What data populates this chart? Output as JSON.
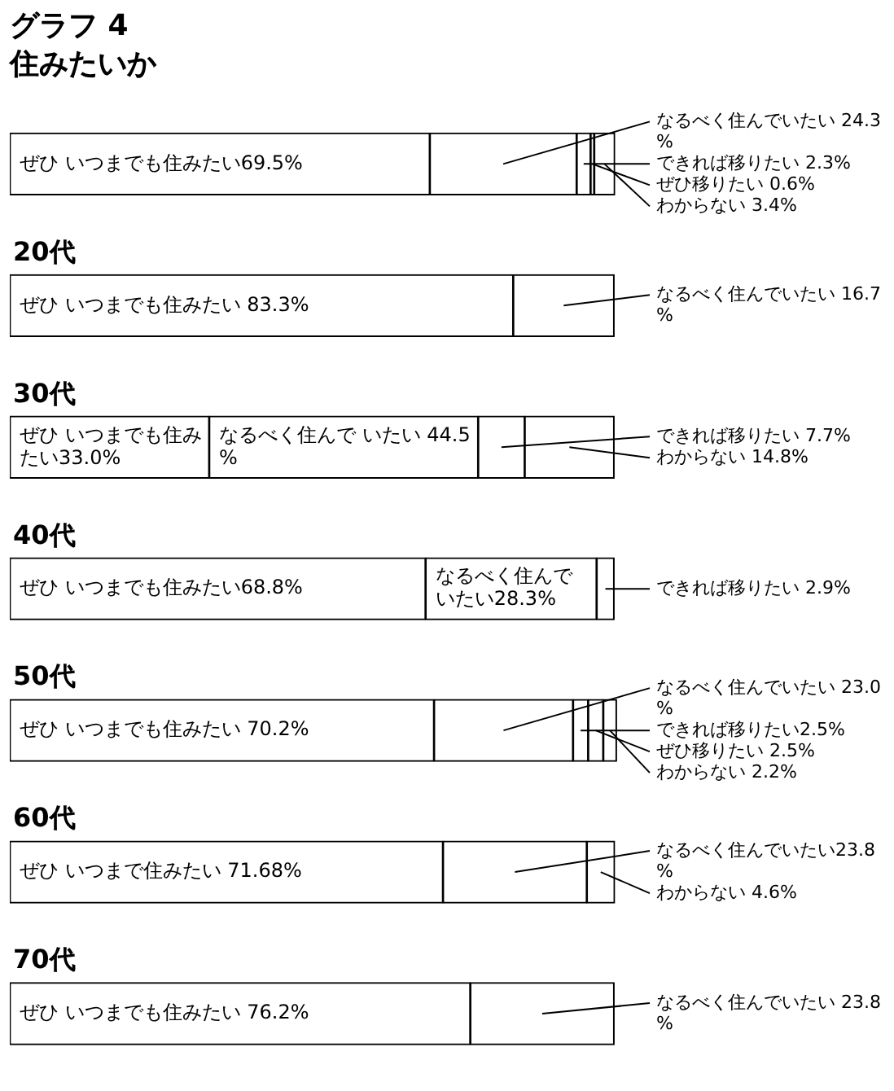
{
  "chart_data": {
    "type": "bar",
    "orientation": "horizontal",
    "stacked": true,
    "title": "グラフ 4",
    "subtitle": "住みたいか",
    "categories": [
      null,
      "20代",
      "30代",
      "40代",
      "50代",
      "60代",
      "70代"
    ],
    "xlim": [
      0,
      100.5
    ],
    "tick_labels": false,
    "grid": false,
    "legend": false,
    "series": [
      {
        "color": "#ffffff",
        "values": [
          69.5,
          83.3,
          33.0,
          68.8,
          70.2,
          71.68,
          76.2
        ],
        "value_labels": [
          "ぜひ いつまでも住みたい69.5%",
          "ぜひ いつまでも住みたい 83.3%",
          "ぜひ いつまでも住みたい33.0%",
          "ぜひ いつまでも住みたい68.8%",
          "ぜひ いつまでも住みたい 70.2%",
          "ぜひ いつまで住みたい 71.68%",
          "ぜひ いつまでも住みたい 76.2%"
        ]
      },
      {
        "color": "#ffffff",
        "values": [
          24.3,
          16.7,
          44.5,
          28.3,
          23.0,
          23.8,
          23.8
        ],
        "value_labels": [
          "なるべく住んでいたい 24.3%",
          "なるべく住んでいたい 16.7%",
          "なるべく住んで いたい 44.5%",
          "なるべく住んでいたい28.3%",
          "なるべく住んでいたい 23.0%",
          "なるべく住んでいたい23.8%",
          "なるべく住んでいたい 23.8%"
        ]
      },
      {
        "color": "#ffffff",
        "values": [
          2.3,
          null,
          7.7,
          2.9,
          2.5,
          null,
          null
        ],
        "value_labels": [
          "できれば移りたい 2.3%",
          null,
          "できれば移りたい 7.7%",
          "できれば移りたい 2.9%",
          "できれば移りたい2.5%",
          null,
          null
        ]
      },
      {
        "color": "#ffffff",
        "values": [
          0.6,
          null,
          null,
          null,
          2.5,
          null,
          null
        ],
        "value_labels": [
          "ぜひ移りたい 0.6%",
          null,
          null,
          null,
          "ぜひ移りたい 2.5%",
          null,
          null
        ]
      },
      {
        "color": "#ffffff",
        "values": [
          3.4,
          null,
          14.8,
          null,
          2.2,
          4.6,
          null
        ],
        "value_labels": [
          "わからない 3.4%",
          null,
          "わからない 14.8%",
          null,
          "わからない 2.2%",
          "わからない 4.6%",
          null
        ]
      }
    ]
  }
}
